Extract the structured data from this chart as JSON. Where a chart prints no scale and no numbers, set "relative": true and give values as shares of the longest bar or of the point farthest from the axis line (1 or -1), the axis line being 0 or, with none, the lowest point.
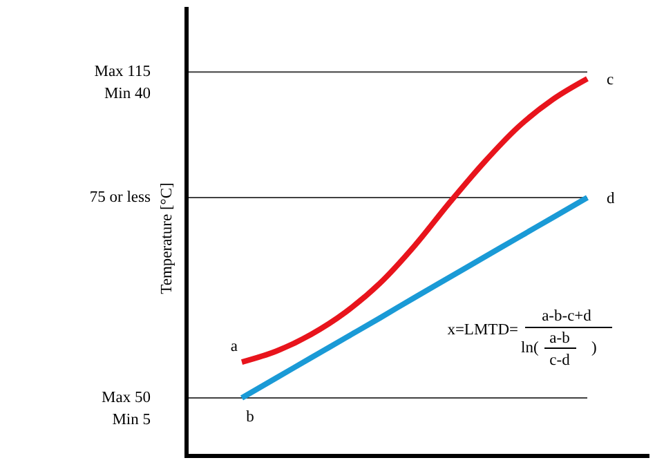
{
  "chart_data": {
    "type": "line",
    "relative": true,
    "ylabel": "Temperature [°C]",
    "categories": [
      null,
      null,
      null,
      null,
      null,
      null,
      null,
      null,
      null,
      null,
      null
    ],
    "series": [
      {
        "color": "#e8141c",
        "values": [
          0.249,
          0.278,
          0.322,
          0.381,
          0.458,
          0.557,
          0.67,
          0.777,
          0.872,
          0.945,
          1
        ]
      },
      {
        "color": "#1a9ad6",
        "values": [
          0.154,
          0.207,
          0.26,
          0.313,
          0.366,
          0.42,
          0.473,
          0.526,
          0.579,
          0.632,
          0.685
        ]
      }
    ],
    "ref_lines": [
      {
        "axis": "y",
        "value": 1.018,
        "label": "Max 115\nMin 40",
        "color": "#404040"
      },
      {
        "axis": "y",
        "value": 0.685,
        "label": "75 or less",
        "color": "#404040"
      },
      {
        "axis": "y",
        "value": 0.154,
        "label": "Max 50\nMin 5",
        "color": "#404040"
      }
    ],
    "annotations": [
      "a",
      "b",
      "c",
      "d",
      "x=LMTD=",
      "a-b-c+d",
      "ln(",
      "a-b",
      "c-d",
      ")"
    ]
  }
}
